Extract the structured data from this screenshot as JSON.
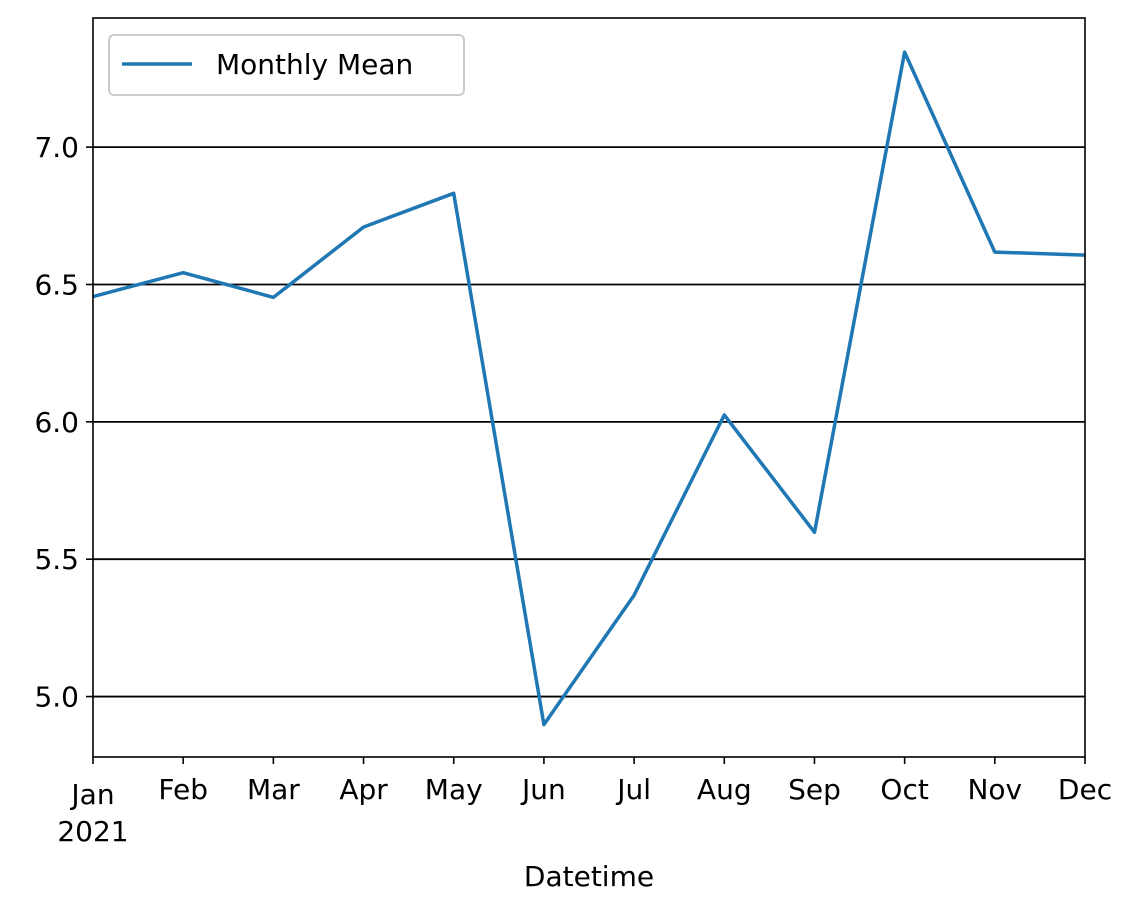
{
  "chart_data": {
    "type": "line",
    "x": [
      "2021-01",
      "2021-02",
      "2021-03",
      "2021-04",
      "2021-05",
      "2021-06",
      "2021-07",
      "2021-08",
      "2021-09",
      "2021-10",
      "2021-11",
      "2021-12"
    ],
    "x_tick_labels": [
      "Jan",
      "Feb",
      "Mar",
      "Apr",
      "May",
      "Jun",
      "Jul",
      "Aug",
      "Sep",
      "Oct",
      "Nov",
      "Dec"
    ],
    "x_tick_year": "2021",
    "series": [
      {
        "name": "Monthly Mean",
        "color": "#1f77b4",
        "values": [
          6.456,
          6.543,
          6.453,
          6.709,
          6.832,
          4.898,
          5.369,
          6.025,
          5.598,
          7.346,
          6.618,
          6.607
        ]
      }
    ],
    "y_ticks": [
      "5.0",
      "5.5",
      "6.0",
      "6.5",
      "7.0"
    ],
    "ylim": [
      4.78,
      7.47
    ],
    "xlabel": "Datetime",
    "ylabel": "",
    "grid": "horizontal",
    "grid_color": "#000000",
    "legend_placement": "upper-left"
  }
}
